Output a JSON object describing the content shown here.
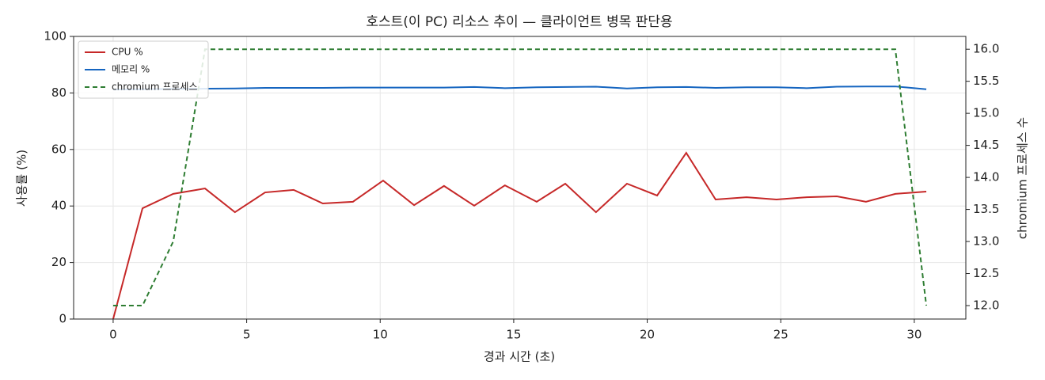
{
  "chart_data": {
    "type": "line",
    "title": "호스트(이 PC) 리소스 추이 — 클라이언트 병목 판단용",
    "x_label": "경과 시간 (초)",
    "y_label": "사용률 (%)",
    "y2_label": "chromium 프로세스 수",
    "x": [
      0,
      1.1,
      2.25,
      3.44,
      4.56,
      5.69,
      6.76,
      7.85,
      8.98,
      10.11,
      11.27,
      12.39,
      13.52,
      14.67,
      15.86,
      16.93,
      18.08,
      19.24,
      20.37,
      21.46,
      22.56,
      23.72,
      24.84,
      25.97,
      27.1,
      28.19,
      29.29,
      30.45
    ],
    "series": [
      {
        "name": "CPU %",
        "color": "#c62828",
        "axis": "y",
        "dash": false,
        "values": [
          0,
          39.2,
          44.3,
          46.2,
          37.8,
          44.8,
          45.7,
          40.9,
          41.5,
          49.0,
          40.3,
          47.1,
          40.1,
          47.3,
          41.5,
          47.9,
          37.8,
          47.9,
          43.7,
          58.8,
          42.3,
          43.1,
          42.3,
          43.1,
          43.4,
          41.5,
          44.3,
          45.1
        ]
      },
      {
        "name": "메모리 %",
        "color": "#1565c0",
        "axis": "y",
        "dash": false,
        "values": [
          81.2,
          81.3,
          81.4,
          81.5,
          81.6,
          81.8,
          81.8,
          81.8,
          81.9,
          81.9,
          81.9,
          81.9,
          82.1,
          81.7,
          82.0,
          82.1,
          82.2,
          81.6,
          82.0,
          82.1,
          81.8,
          82.0,
          82.0,
          81.7,
          82.2,
          82.3,
          82.3,
          81.3
        ]
      },
      {
        "name": "chromium 프로세스",
        "color": "#2e7d32",
        "axis": "y2",
        "dash": true,
        "values": [
          12,
          12,
          13,
          16,
          16,
          16,
          16,
          16,
          16,
          16,
          16,
          16,
          16,
          16,
          16,
          16,
          16,
          16,
          16,
          16,
          16,
          16,
          16,
          16,
          16,
          16,
          16,
          12
        ]
      }
    ],
    "xlim": [
      -1.48,
      31.93
    ],
    "xticks": [
      0,
      5,
      10,
      15,
      20,
      25,
      30
    ],
    "ylim": [
      0,
      100
    ],
    "yticks": [
      0,
      20,
      40,
      60,
      80,
      100
    ],
    "y2lim": [
      11.79,
      16.2
    ],
    "y2ticks": [
      {
        "value": 12,
        "label": "12.0"
      },
      {
        "value": 12.5,
        "label": "12.5"
      },
      {
        "value": 13,
        "label": "13.0"
      },
      {
        "value": 13.5,
        "label": "13.5"
      },
      {
        "value": 14,
        "label": "14.0"
      },
      {
        "value": 14.5,
        "label": "14.5"
      },
      {
        "value": 15,
        "label": "15.0"
      },
      {
        "value": 15.5,
        "label": "15.5"
      },
      {
        "value": 16,
        "label": "16.0"
      }
    ],
    "grid": true,
    "legend": "upper-left"
  }
}
